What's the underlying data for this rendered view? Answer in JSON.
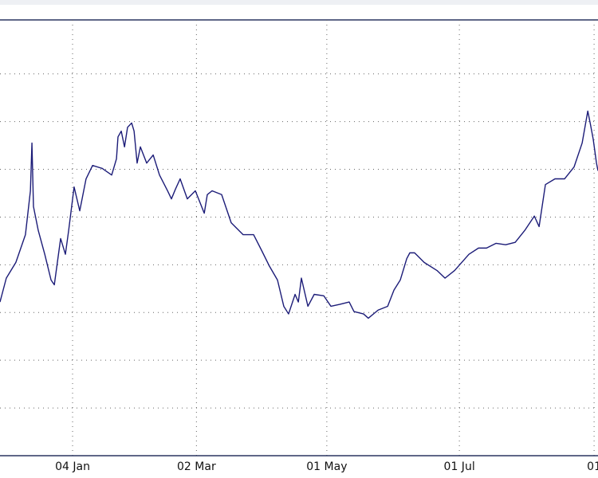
{
  "chart_data": {
    "type": "line",
    "x": [
      -33.4,
      -30.5,
      -26.1,
      -21.7,
      -19.4,
      -18.7,
      -18.0,
      -15.8,
      -12.8,
      -9.9,
      -8.4,
      -5.5,
      -3.3,
      -1.8,
      0.7,
      3.3,
      6.2,
      9.2,
      13.6,
      18.0,
      20.2,
      20.9,
      22.4,
      23.9,
      25.3,
      27.2,
      28.3,
      29.7,
      31.2,
      34.1,
      37.1,
      40.0,
      43.7,
      45.5,
      47.3,
      49.5,
      52.8,
      56.5,
      60.6,
      62.0,
      64.2,
      68.6,
      73.0,
      78.5,
      83.3,
      87.0,
      90.6,
      94.3,
      97.2,
      99.4,
      102.4,
      103.9,
      105.3,
      108.3,
      111.2,
      115.6,
      118.9,
      122.9,
      127.3,
      129.5,
      133.9,
      136.1,
      140.6,
      145.0,
      147.9,
      150.8,
      153.8,
      155.2,
      157.4,
      161.8,
      167.7,
      171.4,
      175.8,
      182.4,
      186.8,
      190.5,
      194.9,
      199.3,
      203.7,
      208.1,
      212.5,
      214.7,
      217.6,
      222.0,
      226.4,
      230.8,
      234.5,
      237.1,
      238.2,
      239.6,
      241.1,
      241.8
    ],
    "series": [
      {
        "color": "#1c1c78",
        "values": [
          3.22,
          3.72,
          4.05,
          4.63,
          5.55,
          6.55,
          5.22,
          4.72,
          4.22,
          3.68,
          3.58,
          4.55,
          4.22,
          4.72,
          5.63,
          5.13,
          5.8,
          6.08,
          6.02,
          5.88,
          6.22,
          6.68,
          6.8,
          6.47,
          6.88,
          6.97,
          6.8,
          6.13,
          6.47,
          6.13,
          6.3,
          5.88,
          5.55,
          5.38,
          5.58,
          5.8,
          5.38,
          5.55,
          5.08,
          5.47,
          5.55,
          5.47,
          4.88,
          4.63,
          4.63,
          4.3,
          3.97,
          3.68,
          3.13,
          2.97,
          3.38,
          3.22,
          3.72,
          3.13,
          3.38,
          3.35,
          3.13,
          3.17,
          3.22,
          3.02,
          2.97,
          2.88,
          3.05,
          3.13,
          3.47,
          3.68,
          4.13,
          4.25,
          4.25,
          4.05,
          3.88,
          3.72,
          3.88,
          4.22,
          4.35,
          4.35,
          4.45,
          4.42,
          4.47,
          4.72,
          5.02,
          4.8,
          5.68,
          5.8,
          5.8,
          6.05,
          6.55,
          7.22,
          6.97,
          6.63,
          6.13,
          5.97
        ]
      }
    ],
    "xlim": [
      -33.4,
      241.8
    ],
    "xticks": [
      {
        "value": 0,
        "label": "04 Jan"
      },
      {
        "value": 57,
        "label": "02 Mar"
      },
      {
        "value": 117,
        "label": "01 May"
      },
      {
        "value": 178,
        "label": "01 Jul"
      },
      {
        "value": 240,
        "label": "01"
      }
    ],
    "ylim": [
      0,
      9.13
    ],
    "yticks": [
      1,
      2,
      3,
      4,
      5,
      6,
      7,
      8
    ],
    "grid": true
  }
}
